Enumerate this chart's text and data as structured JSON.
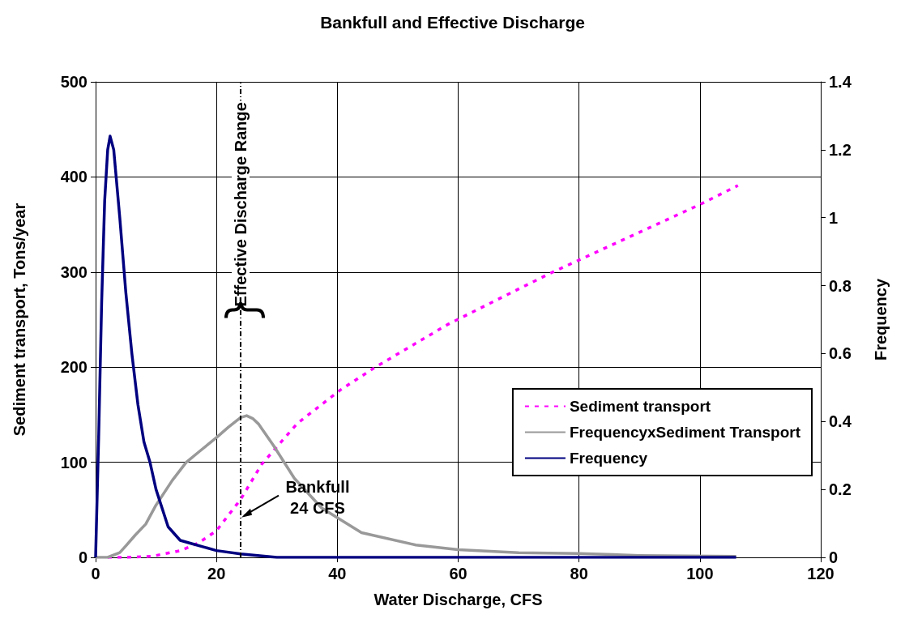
{
  "chart_data": {
    "type": "line",
    "title": "Bankfull and Effective Discharge",
    "xlabel": "Water Discharge, CFS",
    "ylabel": "Sediment transport, Tons/year",
    "y2label": "Frequency",
    "xlim": [
      0,
      120
    ],
    "xticks": [
      0,
      20,
      40,
      60,
      80,
      100,
      120
    ],
    "ylim": [
      0,
      500
    ],
    "yticks": [
      0,
      100,
      200,
      300,
      400,
      500
    ],
    "y2lim": [
      0,
      1.4
    ],
    "y2ticks": [
      0,
      0.2,
      0.4,
      0.6,
      0.8,
      1,
      1.2,
      1.4
    ],
    "grid": true,
    "legend": "right",
    "marker": "none",
    "series": [
      {
        "name": "Sediment transport",
        "color": "#ff00ff",
        "line_style": "dashed",
        "x": [
          2,
          5,
          9.2,
          14,
          17,
          20,
          24,
          27.5,
          33.4,
          40.5,
          46.3,
          58.3,
          75,
          100,
          106.3
        ],
        "values": [
          0,
          0,
          1,
          7,
          15,
          28,
          61,
          98,
          141,
          176,
          200,
          245,
          298,
          371,
          391
        ]
      },
      {
        "name": "FrequencyxSediment Transport",
        "color": "#999999",
        "line_style": "solid",
        "x": [
          0,
          2,
          4,
          5,
          6.5,
          8.3,
          10,
          12.7,
          15,
          17.3,
          20,
          22,
          24,
          25,
          26,
          27,
          29.4,
          32.9,
          37.4,
          44,
          53,
          60,
          70,
          80,
          90,
          106
        ],
        "values": [
          0,
          0,
          5,
          12,
          23,
          35,
          55,
          81,
          100,
          112,
          126,
          137,
          147,
          149,
          146,
          140,
          118,
          83,
          52,
          26,
          13,
          8,
          5,
          4,
          2,
          1
        ]
      },
      {
        "name": "Frequency",
        "color": "#000080",
        "line_style": "solid",
        "axis": "y2",
        "x": [
          0,
          0.5,
          1,
          1.5,
          2,
          2.4,
          3,
          4,
          5,
          6,
          7,
          8,
          9,
          10,
          12,
          14,
          16,
          20,
          24,
          30,
          40,
          60,
          106
        ],
        "values": [
          0,
          0.35,
          0.75,
          1.05,
          1.2,
          1.24,
          1.2,
          1,
          0.78,
          0.6,
          0.45,
          0.34,
          0.28,
          0.2,
          0.09,
          0.05,
          0.04,
          0.02,
          0.01,
          0,
          0,
          0,
          0
        ]
      }
    ],
    "ref_lines": [
      {
        "axis": "x",
        "value": 24,
        "label": null,
        "line_style": "dotted",
        "color": "#000000"
      }
    ],
    "annotations": [
      {
        "text": "Effective Discharge Range",
        "x": 24,
        "y": 250
      },
      {
        "text": "Bankfull\n24 CFS",
        "x": 24,
        "y": 42
      }
    ]
  }
}
